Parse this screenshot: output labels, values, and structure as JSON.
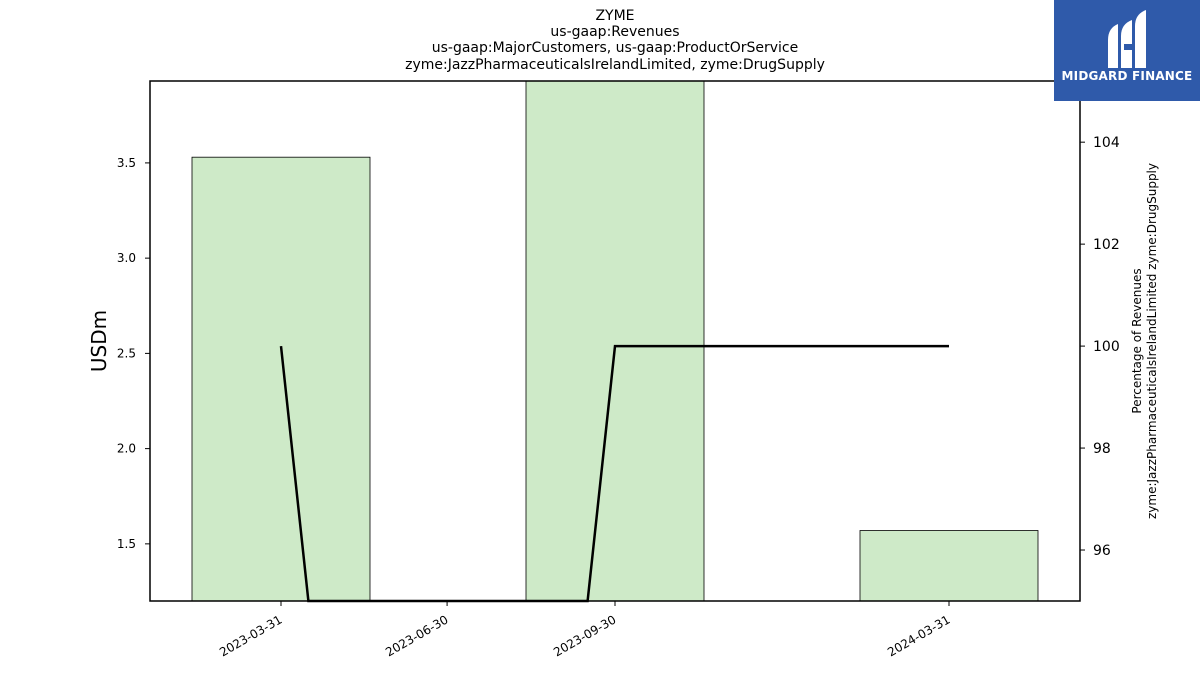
{
  "chart_data": {
    "type": "bar",
    "title_lines": [
      "ZYME",
      "us-gaap:Revenues",
      "us-gaap:MajorCustomers, us-gaap:ProductOrService",
      "zyme:JazzPharmaceuticalsIrelandLimited, zyme:DrugSupply"
    ],
    "x_tick_labels": [
      "2023-03-31",
      "2023-06-30",
      "2023-09-30",
      "2024-03-31"
    ],
    "bars": [
      {
        "x": "2023-03-31",
        "value": 3.53
      },
      {
        "x": "2023-09-30",
        "value": 3.93
      },
      {
        "x": "2024-03-31",
        "value": 1.57
      }
    ],
    "ylabel": "USDm",
    "ylim": [
      1.2,
      3.93
    ],
    "y_ticks": [
      1.5,
      2.0,
      2.5,
      3.0,
      3.5
    ],
    "y_tick_labels": [
      "1.5",
      "2.0",
      "2.5",
      "3.0",
      "3.5"
    ],
    "line_series": {
      "points": [
        {
          "x": "2023-03-31",
          "y": 100
        },
        {
          "x": "2023-04-15",
          "y": 95
        },
        {
          "x": "2023-09-15",
          "y": 95
        },
        {
          "x": "2023-09-30",
          "y": 100
        },
        {
          "x": "2024-03-31",
          "y": 100
        }
      ],
      "color": "#000000"
    },
    "y2label_lines": [
      "Percentage of Revenues",
      "zyme:JazzPharmaceuticalsIrelandLimited zyme:DrugSupply"
    ],
    "y2lim": [
      95,
      105.2
    ],
    "y2_ticks": [
      96,
      98,
      100,
      102,
      104
    ],
    "y2_tick_labels": [
      "96",
      "98",
      "100",
      "102",
      "104"
    ],
    "bar_color": "#ceeac8",
    "bar_edge_color": "#000000",
    "grid": false
  },
  "logo": {
    "text": "MIDGARD FINANCE",
    "icon": "midgard-logo-icon",
    "background": "#2f5aaa"
  }
}
